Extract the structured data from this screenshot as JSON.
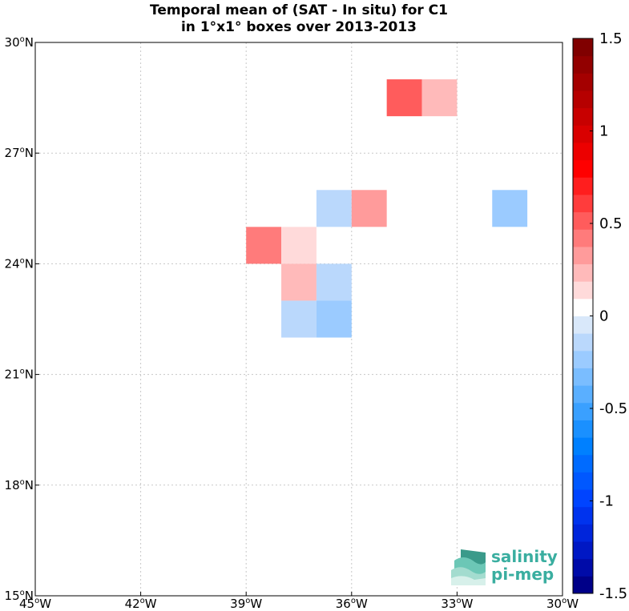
{
  "chart_data": {
    "type": "heatmap",
    "title": [
      "Temporal mean of (SAT - In situ) for C1",
      "in 1°x1° boxes over 2013-2013"
    ],
    "xlim": [
      -45,
      -30
    ],
    "ylim": [
      15,
      30
    ],
    "grid": true,
    "x_ticks": [
      {
        "value": -45,
        "label": "45",
        "hemi": "W"
      },
      {
        "value": -42,
        "label": "42",
        "hemi": "W"
      },
      {
        "value": -39,
        "label": "39",
        "hemi": "W"
      },
      {
        "value": -36,
        "label": "36",
        "hemi": "W"
      },
      {
        "value": -33,
        "label": "33",
        "hemi": "W"
      },
      {
        "value": -30,
        "label": "30",
        "hemi": "W"
      }
    ],
    "y_ticks": [
      {
        "value": 15,
        "label": "15",
        "hemi": "N"
      },
      {
        "value": 18,
        "label": "18",
        "hemi": "N"
      },
      {
        "value": 21,
        "label": "21",
        "hemi": "N"
      },
      {
        "value": 24,
        "label": "24",
        "hemi": "N"
      },
      {
        "value": 27,
        "label": "27",
        "hemi": "N"
      },
      {
        "value": 30,
        "label": "30",
        "hemi": "N"
      }
    ],
    "cells": [
      {
        "lon": -35,
        "lat": 28,
        "value": 0.55
      },
      {
        "lon": -34,
        "lat": 28,
        "value": 0.2
      },
      {
        "lon": -37,
        "lat": 25,
        "value": -0.15
      },
      {
        "lon": -36,
        "lat": 25,
        "value": 0.3
      },
      {
        "lon": -32,
        "lat": 25,
        "value": -0.25
      },
      {
        "lon": -39,
        "lat": 24,
        "value": 0.45
      },
      {
        "lon": -38,
        "lat": 24,
        "value": 0.15
      },
      {
        "lon": -38,
        "lat": 23,
        "value": 0.2
      },
      {
        "lon": -37,
        "lat": 23,
        "value": -0.15
      },
      {
        "lon": -38,
        "lat": 22,
        "value": -0.15
      },
      {
        "lon": -37,
        "lat": 22,
        "value": -0.25
      }
    ],
    "colorbar": {
      "vmin": -1.5,
      "vmax": 1.5,
      "ticks": [
        {
          "value": 1.5,
          "label": "1.5"
        },
        {
          "value": 1,
          "label": "1"
        },
        {
          "value": 0.5,
          "label": "0.5"
        },
        {
          "value": 0,
          "label": "0"
        },
        {
          "value": -0.5,
          "label": "-0.5"
        },
        {
          "value": -1,
          "label": "-1"
        },
        {
          "value": -1.5,
          "label": "-1.5"
        }
      ],
      "colors": [
        "#000088",
        "#000ba8",
        "#0018c4",
        "#0025db",
        "#0033ee",
        "#0044ff",
        "#0058ff",
        "#006bff",
        "#0080ff",
        "#1a90ff",
        "#3aa0ff",
        "#5aafff",
        "#7abdff",
        "#9bcbff",
        "#bad8fc",
        "#d9e8fa",
        "#ffffff",
        "#ffdada",
        "#ffbaba",
        "#ff9b9b",
        "#ff7b7b",
        "#ff5c5c",
        "#ff3c3c",
        "#ff1e1e",
        "#ff0000",
        "#ec0000",
        "#d90000",
        "#c80000",
        "#b60000",
        "#a40000",
        "#920000",
        "#800000"
      ]
    }
  },
  "logo": {
    "line1": "salinity",
    "line2": "pi-mep"
  }
}
